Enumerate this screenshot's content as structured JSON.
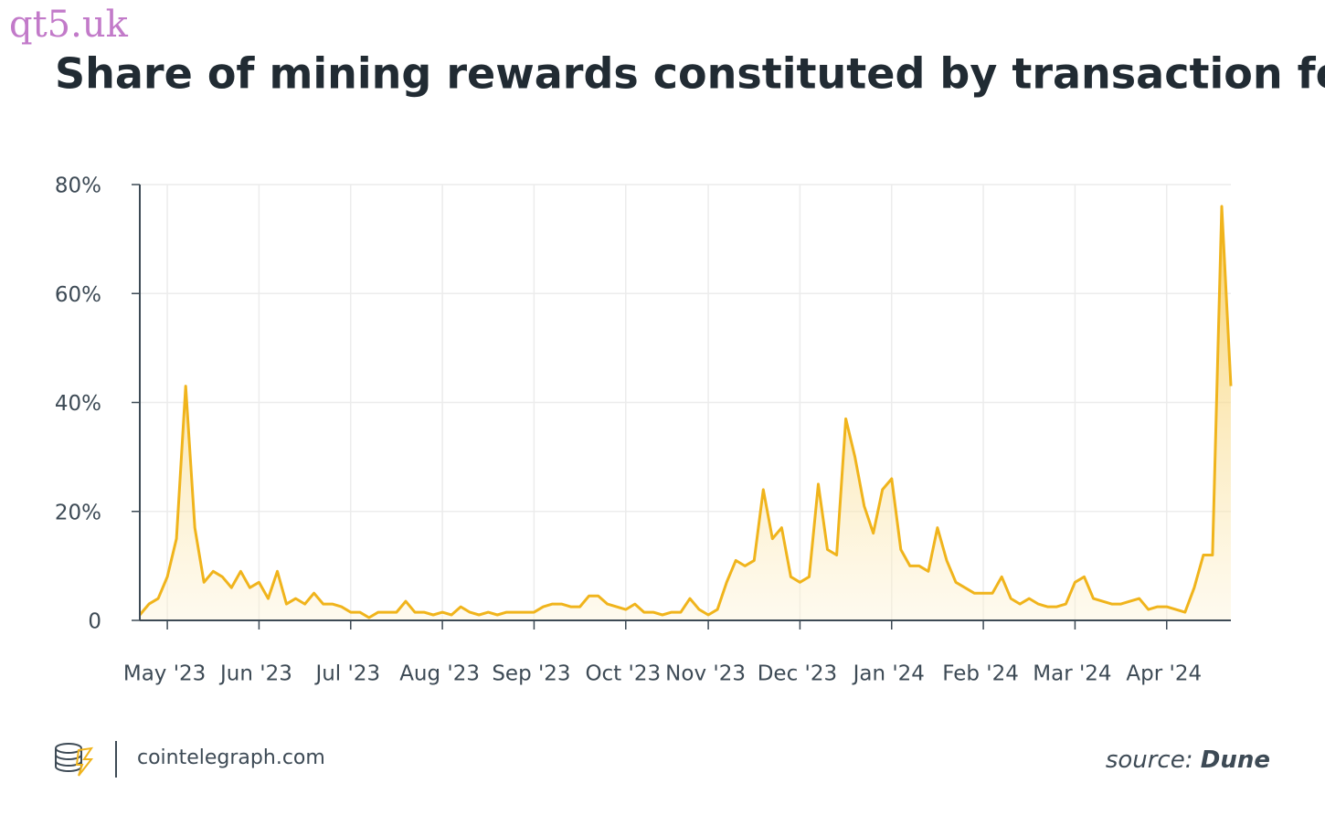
{
  "watermark": "qt5.uk",
  "footer": {
    "site": "cointelegraph.com",
    "source_label": "source:",
    "source_name": "Dune"
  },
  "chart_data": {
    "type": "area",
    "title": "Share of mining rewards constituted by transaction fees",
    "color": "#f0b41c",
    "grid": true,
    "ylim": [
      0,
      80
    ],
    "yticks": [
      0,
      {
        "value": 20,
        "label": "20%"
      },
      {
        "value": 40,
        "label": "40%"
      },
      {
        "value": 60,
        "label": "60%"
      },
      {
        "value": 80,
        "label": "80%"
      }
    ],
    "categories": [
      null,
      null,
      null,
      "May '23",
      null,
      null,
      null,
      null,
      null,
      null,
      null,
      null,
      null,
      "Jun '23",
      null,
      null,
      null,
      null,
      null,
      null,
      null,
      null,
      null,
      "Jul '23",
      null,
      null,
      null,
      null,
      null,
      null,
      null,
      null,
      null,
      "Aug '23",
      null,
      null,
      null,
      null,
      null,
      null,
      null,
      null,
      null,
      "Sep '23",
      null,
      null,
      null,
      null,
      null,
      null,
      null,
      null,
      null,
      "Oct '23",
      null,
      null,
      null,
      null,
      null,
      null,
      null,
      null,
      "Nov '23",
      null,
      null,
      null,
      null,
      null,
      null,
      null,
      null,
      null,
      "Dec '23",
      null,
      null,
      null,
      null,
      null,
      null,
      null,
      null,
      null,
      "Jan '24",
      null,
      null,
      null,
      null,
      null,
      null,
      null,
      null,
      null,
      "Feb '24",
      null,
      null,
      null,
      null,
      null,
      null,
      null,
      null,
      null,
      "Mar '24",
      null,
      null,
      null,
      null,
      null,
      null,
      null,
      null,
      null,
      "Apr '24",
      null,
      null,
      null,
      null,
      null,
      null,
      null
    ],
    "values": [
      1,
      3,
      4,
      8,
      15,
      43,
      17,
      7,
      9,
      8,
      6,
      9,
      6,
      7,
      4,
      9,
      3,
      4,
      3,
      5,
      3,
      3,
      2.5,
      1.5,
      1.5,
      0.5,
      1.5,
      1.5,
      1.5,
      3.5,
      1.5,
      1.5,
      1,
      1.5,
      1,
      2.5,
      1.5,
      1,
      1.5,
      1,
      1.5,
      1.5,
      1.5,
      1.5,
      2.5,
      3,
      3,
      2.5,
      2.5,
      4.5,
      4.5,
      3,
      2.5,
      2,
      3,
      1.5,
      1.5,
      1,
      1.5,
      1.5,
      4,
      2,
      1,
      2,
      7,
      11,
      10,
      11,
      24,
      15,
      17,
      8,
      7,
      8,
      25,
      13,
      12,
      37,
      30,
      21,
      16,
      24,
      26,
      13,
      10,
      10,
      9,
      17,
      11,
      7,
      6,
      5,
      5,
      5,
      8,
      4,
      3,
      4,
      3,
      2.5,
      2.5,
      3,
      7,
      8,
      4,
      3.5,
      3,
      3,
      3.5,
      4,
      2,
      2.5,
      2.5,
      2,
      1.5,
      6,
      12,
      12,
      76,
      43
    ]
  }
}
